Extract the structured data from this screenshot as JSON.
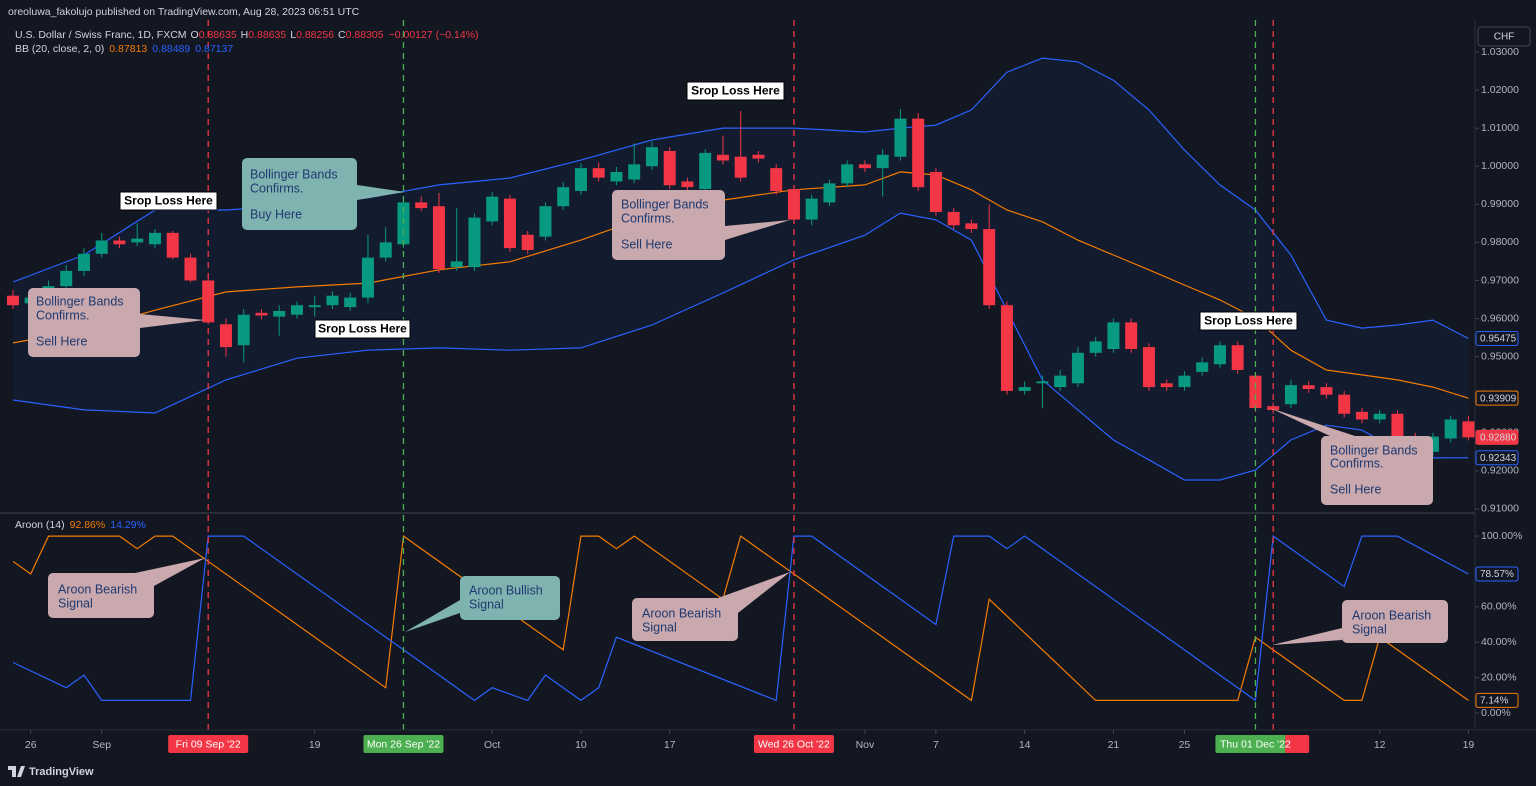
{
  "header": {
    "published": "oreoluwa_fakolujo published on TradingView.com, Aug 28, 2023 06:51 UTC",
    "currency": "CHF",
    "brand": "TradingView",
    "stop_labels": [
      "Srop Loss Here",
      "Srop Loss Here",
      "Srop Loss Here",
      "Srop Loss Here"
    ],
    "annotations": [
      [
        "Bollinger Bands",
        "Confirms.",
        "Buy Here"
      ],
      [
        "Bollinger Bands",
        "Confirms.",
        "Sell Here"
      ],
      [
        "Bollinger Bands",
        "Confirms.",
        "Sell Here"
      ],
      [
        "Bollinger Bands",
        "Confirms.",
        "Sell Here"
      ],
      [
        "Aroon Bearish",
        "Signal"
      ],
      [
        "Aroon Bullish",
        "Signal"
      ],
      [
        "Aroon Bearish",
        "Signal"
      ],
      [
        "Aroon Bearish",
        "Signal"
      ]
    ]
  },
  "markers": [
    {
      "x": 11,
      "color": "#f23645",
      "label": "Fri 09 Sep '22"
    },
    {
      "x": 22,
      "color": "#4caf50",
      "label": "Mon 26 Sep '22"
    },
    {
      "x": 44,
      "color": "#f23645",
      "label": "Wed 26 Oct '22"
    },
    {
      "x": 70,
      "color": "#4caf50",
      "label": "Thu 01 Dec '22"
    },
    {
      "x": 71,
      "color": "#f23645"
    }
  ],
  "chart_data": [
    {
      "type": "candlestick",
      "title": "U.S. Dollar / Swiss Franc, 1D, FXCM",
      "ohlc_names": [
        "O",
        "H",
        "L",
        "C"
      ],
      "ohlc_values": [
        "0.88635",
        "0.88635",
        "0.88256",
        "0.88305"
      ],
      "change": "−0.00127 (−0.14%)",
      "up_color": "#089981",
      "down_color": "#f23645",
      "last_label": "0.92880",
      "xlim": [
        -0.73,
        82.37
      ],
      "ylim": [
        0.9092,
        1.0384
      ],
      "yticks": [
        {
          "value": 1.03,
          "label": "1.03000"
        },
        {
          "value": 1.02,
          "label": "1.02000"
        },
        {
          "value": 1.01,
          "label": "1.01000"
        },
        {
          "value": 1.0,
          "label": "1.00000"
        },
        {
          "value": 0.99,
          "label": "0.99000"
        },
        {
          "value": 0.98,
          "label": "0.98000"
        },
        {
          "value": 0.97,
          "label": "0.97000"
        },
        {
          "value": 0.96,
          "label": "0.96000"
        },
        {
          "value": 0.95,
          "label": "0.95000"
        },
        {
          "value": 0.94,
          "label": "0.94000"
        },
        {
          "value": 0.93,
          "label": "0.93000"
        },
        {
          "value": 0.92,
          "label": "0.92000"
        },
        {
          "value": 0.91,
          "label": "0.91000"
        }
      ],
      "open": [
        0.966,
        0.964,
        0.966,
        0.9685,
        0.9725,
        0.977,
        0.9805,
        0.98,
        0.9795,
        0.9825,
        0.976,
        0.97,
        0.9585,
        0.953,
        0.9615,
        0.9605,
        0.961,
        0.963,
        0.9635,
        0.963,
        0.9655,
        0.976,
        0.9795,
        0.9905,
        0.9895,
        0.9735,
        0.9735,
        0.9855,
        0.9915,
        0.982,
        0.9815,
        0.9895,
        0.9935,
        0.9995,
        0.996,
        0.9965,
        1.0,
        1.004,
        0.996,
        0.994,
        1.003,
        1.0025,
        1.003,
        0.9995,
        0.994,
        0.986,
        0.9905,
        0.9955,
        1.0005,
        0.9995,
        1.0025,
        1.0125,
        0.9985,
        0.988,
        0.985,
        0.9835,
        0.9635,
        0.941,
        0.943,
        0.942,
        0.943,
        0.951,
        0.952,
        0.959,
        0.9525,
        0.943,
        0.942,
        0.946,
        0.948,
        0.953,
        0.945,
        0.937,
        0.9375,
        0.9425,
        0.942,
        0.94,
        0.9355,
        0.9335,
        0.935,
        0.929,
        0.925,
        0.9285,
        0.933
      ],
      "high": [
        0.9675,
        0.9668,
        0.97,
        0.974,
        0.9785,
        0.9825,
        0.9815,
        0.985,
        0.9835,
        0.983,
        0.977,
        0.971,
        0.96,
        0.9625,
        0.9625,
        0.9635,
        0.9645,
        0.966,
        0.9672,
        0.9668,
        0.982,
        0.984,
        0.991,
        0.992,
        0.993,
        0.989,
        0.9875,
        0.9932,
        0.9925,
        0.983,
        0.9905,
        0.9958,
        1.0008,
        1.001,
        0.9998,
        1.006,
        1.0065,
        1.005,
        0.997,
        1.0045,
        1.008,
        1.0145,
        1.004,
        1.0005,
        0.995,
        0.9925,
        0.9965,
        1.0015,
        1.0015,
        1.0045,
        1.015,
        1.014,
        0.9995,
        0.989,
        0.986,
        0.99,
        0.9645,
        0.9435,
        0.945,
        0.9465,
        0.9525,
        0.9552,
        0.96,
        0.96,
        0.9535,
        0.944,
        0.9462,
        0.9498,
        0.954,
        0.954,
        0.946,
        0.938,
        0.944,
        0.9435,
        0.943,
        0.941,
        0.9365,
        0.936,
        0.936,
        0.93,
        0.93,
        0.9345,
        0.9345
      ],
      "low": [
        0.9625,
        0.9628,
        0.9648,
        0.9672,
        0.9712,
        0.976,
        0.9785,
        0.979,
        0.9785,
        0.9755,
        0.9695,
        0.9585,
        0.95,
        0.9485,
        0.9598,
        0.9555,
        0.96,
        0.9605,
        0.9625,
        0.962,
        0.964,
        0.975,
        0.9785,
        0.9882,
        0.972,
        0.9725,
        0.9725,
        0.9845,
        0.9775,
        0.977,
        0.9805,
        0.9885,
        0.9925,
        0.996,
        0.995,
        0.9955,
        0.999,
        0.994,
        0.9935,
        0.993,
        1.0005,
        0.996,
        1.001,
        0.9925,
        0.985,
        0.9845,
        0.9895,
        0.9945,
        0.9985,
        0.992,
        1.0015,
        0.9935,
        0.987,
        0.9835,
        0.9825,
        0.9625,
        0.94,
        0.94,
        0.9365,
        0.941,
        0.942,
        0.95,
        0.951,
        0.951,
        0.941,
        0.941,
        0.941,
        0.945,
        0.947,
        0.9455,
        0.9355,
        0.935,
        0.9365,
        0.9405,
        0.939,
        0.934,
        0.9325,
        0.9325,
        0.9275,
        0.9255,
        0.924,
        0.9275,
        0.928
      ],
      "close": [
        0.9635,
        0.9655,
        0.9685,
        0.9725,
        0.977,
        0.9805,
        0.9795,
        0.981,
        0.9825,
        0.976,
        0.97,
        0.959,
        0.9525,
        0.961,
        0.9608,
        0.962,
        0.9635,
        0.9635,
        0.966,
        0.9655,
        0.976,
        0.98,
        0.9905,
        0.989,
        0.973,
        0.975,
        0.9865,
        0.992,
        0.9785,
        0.978,
        0.9895,
        0.9945,
        0.9995,
        0.997,
        0.9985,
        1.0005,
        1.005,
        0.995,
        0.9945,
        1.0035,
        1.0015,
        0.997,
        1.002,
        0.9935,
        0.986,
        0.9915,
        0.9955,
        1.0005,
        0.9995,
        1.003,
        1.0125,
        0.9945,
        0.988,
        0.9845,
        0.9835,
        0.9635,
        0.941,
        0.942,
        0.9435,
        0.945,
        0.951,
        0.954,
        0.959,
        0.952,
        0.942,
        0.942,
        0.945,
        0.9485,
        0.953,
        0.9465,
        0.9365,
        0.936,
        0.9425,
        0.9415,
        0.94,
        0.935,
        0.9335,
        0.935,
        0.9285,
        0.927,
        0.929,
        0.9335,
        0.9288
      ],
      "bands": {
        "name": "BB (20, close, 2, 0)",
        "fill": "rgba(41,98,255,0.06)",
        "x": [
          0,
          4,
          8,
          12,
          16,
          20,
          24,
          28,
          32,
          36,
          40,
          44,
          48,
          50,
          52,
          54,
          56,
          58,
          60,
          62,
          64,
          66,
          68,
          70,
          72,
          74,
          76,
          78,
          80,
          82
        ],
        "series": [
          {
            "color": "#f57c00",
            "legend_value": "0.87813",
            "values": [
              0.9536,
              0.957,
              0.9622,
              0.967,
              0.9683,
              0.9693,
              0.9728,
              0.9749,
              0.9806,
              0.9872,
              0.9911,
              0.9938,
              0.9951,
              0.9985,
              0.9977,
              0.9938,
              0.9885,
              0.9854,
              0.9806,
              0.9767,
              0.9728,
              0.9688,
              0.9649,
              0.9601,
              0.9517,
              0.9465,
              0.9452,
              0.9439,
              0.942,
              0.93909
            ]
          },
          {
            "color": "#2962ff",
            "legend_value": "0.88489",
            "values": [
              0.9696,
              0.9767,
              0.9885,
              0.9885,
              0.9898,
              0.9917,
              0.9951,
              0.9969,
              1.0016,
              1.0069,
              1.01,
              1.01,
              1.009,
              1.01,
              1.0108,
              1.0148,
              1.0247,
              1.0284,
              1.0274,
              1.0226,
              1.0148,
              1.0043,
              0.9951,
              0.9885,
              0.9767,
              0.9596,
              0.9575,
              0.9583,
              0.9596,
              0.95475
            ]
          },
          {
            "color": "#2962ff",
            "legend_value": "0.87137",
            "values": [
              0.9386,
              0.936,
              0.9352,
              0.9439,
              0.9496,
              0.9517,
              0.9523,
              0.9517,
              0.9523,
              0.9583,
              0.9667,
              0.9754,
              0.9819,
              0.9877,
              0.9859,
              0.9806,
              0.9622,
              0.9439,
              0.936,
              0.9281,
              0.9229,
              0.9176,
              0.9176,
              0.9202,
              0.9281,
              0.932,
              0.9307,
              0.9255,
              0.9234,
              0.92343
            ]
          }
        ]
      }
    },
    {
      "type": "line",
      "title": "Aroon (14)",
      "xlim": [
        -0.73,
        82.37
      ],
      "ylim": [
        -9.6,
        111.9
      ],
      "yticks": [
        {
          "value": 100,
          "label": "100.00%"
        },
        {
          "value": 80,
          "label": "80.00%"
        },
        {
          "value": 60,
          "label": "60.00%"
        },
        {
          "value": 40,
          "label": "40.00%"
        },
        {
          "value": 20,
          "label": "20.00%"
        },
        {
          "value": 0,
          "label": "0.00%"
        }
      ],
      "xticks": [
        {
          "value": 1,
          "label": "26"
        },
        {
          "value": 5,
          "label": "Sep"
        },
        {
          "value": 17,
          "label": "19"
        },
        {
          "value": 27,
          "label": "Oct"
        },
        {
          "value": 32,
          "label": "10"
        },
        {
          "value": 37,
          "label": "17"
        },
        {
          "value": 48,
          "label": "Nov"
        },
        {
          "value": 52,
          "label": "7"
        },
        {
          "value": 57,
          "label": "14"
        },
        {
          "value": 62,
          "label": "21"
        },
        {
          "value": 66,
          "label": "25"
        },
        {
          "value": 77,
          "label": "12"
        },
        {
          "value": 82,
          "label": "19"
        }
      ],
      "series": [
        {
          "color": "#f57c00",
          "legend_value": "92.86%",
          "last_label": "7.14%",
          "x": [
            0,
            1,
            2,
            6,
            7,
            8,
            9,
            21,
            22,
            31,
            32,
            33,
            34,
            35,
            40,
            41,
            54,
            55,
            61,
            69,
            70,
            75,
            76,
            77,
            82
          ],
          "values": [
            85.71,
            78.57,
            100,
            100,
            92.86,
            100,
            100,
            14.29,
            100,
            35.71,
            100,
            100,
            92.86,
            100,
            64.29,
            100,
            7.14,
            64.29,
            7.14,
            7.14,
            42.86,
            7.14,
            7.14,
            42.86,
            7.14
          ]
        },
        {
          "color": "#2962ff",
          "legend_value": "14.29%",
          "last_label": "78.57%",
          "x": [
            0,
            3,
            4,
            5,
            10,
            11,
            13,
            22,
            26,
            27,
            29,
            30,
            32,
            33,
            34,
            43,
            44,
            45,
            52,
            53,
            55,
            56,
            57,
            70,
            71,
            75,
            76,
            78,
            82
          ],
          "values": [
            28.57,
            14.29,
            21.43,
            7.14,
            7.14,
            100,
            100,
            35.71,
            7.14,
            14.29,
            7.14,
            21.43,
            7.14,
            14.29,
            42.86,
            7.14,
            100,
            100,
            50,
            100,
            100,
            92.86,
            100,
            7.14,
            100,
            71.43,
            100,
            100,
            78.57
          ]
        }
      ]
    }
  ]
}
